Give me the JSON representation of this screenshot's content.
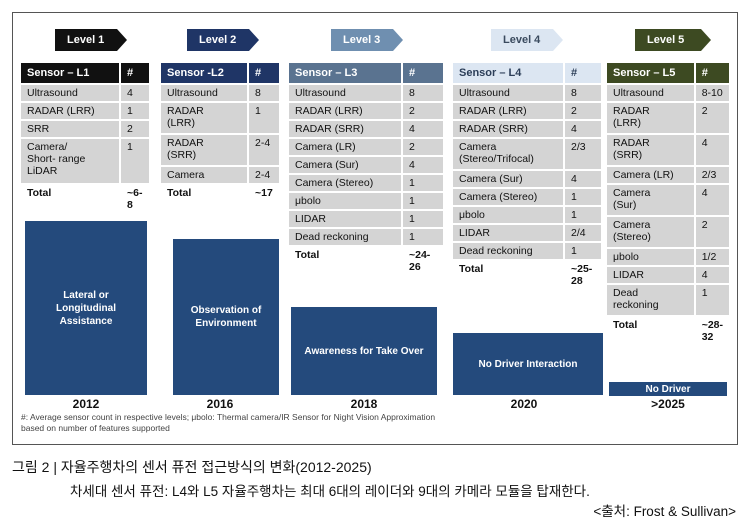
{
  "levels": [
    {
      "arrow": "Level 1",
      "arrow_color": "#111111",
      "head_color": "#111111",
      "h1": "Sensor – L1",
      "h2": "#",
      "rows": [
        [
          "Ultrasound",
          "4"
        ],
        [
          "RADAR (LRR)",
          "1"
        ],
        [
          "SRR",
          "2"
        ],
        [
          "Camera/\nShort- range\nLiDAR",
          "1"
        ]
      ],
      "total": [
        "Total",
        "~6-8"
      ],
      "goal": "Lateral or\nLongitudinal\nAssistance",
      "year": "2012"
    },
    {
      "arrow": "Level 2",
      "arrow_color": "#1f3566",
      "head_color": "#1f3566",
      "h1": "Sensor -L2",
      "h2": "#",
      "rows": [
        [
          "Ultrasound",
          "8"
        ],
        [
          "RADAR\n(LRR)",
          "1"
        ],
        [
          "RADAR\n(SRR)",
          "2-4"
        ],
        [
          "Camera",
          "2-4"
        ]
      ],
      "total": [
        "Total",
        "~17"
      ],
      "goal": "Observation of\nEnvironment",
      "year": "2016"
    },
    {
      "arrow": "Level 3",
      "arrow_color": "#6f8fb0",
      "head_color": "#5a7390",
      "h1": "Sensor – L3",
      "h2": "#",
      "rows": [
        [
          "Ultrasound",
          "8"
        ],
        [
          "RADAR (LRR)",
          "2"
        ],
        [
          "RADAR (SRR)",
          "4"
        ],
        [
          "Camera (LR)",
          "2"
        ],
        [
          "Camera (Sur)",
          "4"
        ],
        [
          "Camera (Stereo)",
          "1"
        ],
        [
          "μbolo",
          "1"
        ],
        [
          "LIDAR",
          "1"
        ],
        [
          "Dead reckoning",
          "1"
        ]
      ],
      "total": [
        "Total",
        "~24-26"
      ],
      "goal": "Awareness for Take Over",
      "year": "2018"
    },
    {
      "arrow": "Level 4",
      "arrow_color": "#dce6f2",
      "head_color": "#9fb6d3",
      "h1": "Sensor – L4",
      "h2": "#",
      "rows": [
        [
          "Ultrasound",
          "8"
        ],
        [
          "RADAR (LRR)",
          "2"
        ],
        [
          "RADAR (SRR)",
          "4"
        ],
        [
          "Camera\n(Stereo/Trifocal)",
          "2/3"
        ],
        [
          "Camera (Sur)",
          "4"
        ],
        [
          "Camera (Stereo)",
          "1"
        ],
        [
          "μbolo",
          "1"
        ],
        [
          "LIDAR",
          "2/4"
        ],
        [
          "Dead reckoning",
          "1"
        ]
      ],
      "total": [
        "Total",
        "~25-\n28"
      ],
      "goal": "No Driver Interaction",
      "year": "2020"
    },
    {
      "arrow": "Level 5",
      "arrow_color": "#3d4a22",
      "head_color": "#3d4a22",
      "h1": "Sensor – L5",
      "h2": "#",
      "rows": [
        [
          "Ultrasound",
          "8-10"
        ],
        [
          "RADAR\n(LRR)",
          "2"
        ],
        [
          "RADAR\n(SRR)",
          "4"
        ],
        [
          "Camera (LR)",
          "2/3"
        ],
        [
          "Camera\n(Sur)",
          "4"
        ],
        [
          "Camera\n(Stereo)",
          "2"
        ],
        [
          "μbolo",
          "1/2"
        ],
        [
          "LIDAR",
          "4"
        ],
        [
          "Dead\nreckoning",
          "1"
        ]
      ],
      "total": [
        "Total",
        "~28-\n32"
      ],
      "goal": "No Driver",
      "year": ">2025"
    }
  ],
  "footnote": "#: Average sensor count in respective levels; μbolo: Thermal camera/IR Sensor for Night Vision Approximation\nbased on number of features supported",
  "caption": {
    "title": "그림 2 | 자율주행차의 센서 퓨전 접근방식의 변화(2012-2025)",
    "subtitle": "차세대 센서 퓨전: L4와 L5 자율주행차는 최대 6대의 레이더와 9대의 카메라 모듈을 탑재한다.",
    "source": "<출처: Frost & Sullivan>"
  }
}
